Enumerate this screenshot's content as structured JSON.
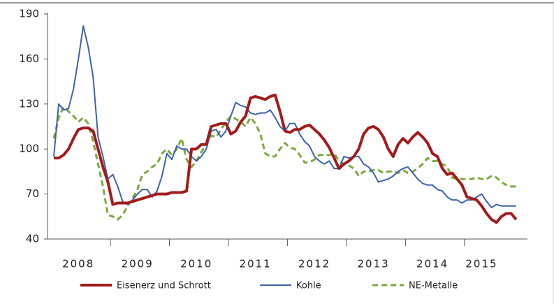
{
  "chart_data": {
    "type": "line",
    "categories": [
      null,
      null,
      null,
      null,
      null,
      "2008",
      null,
      null,
      null,
      null,
      null,
      null,
      null,
      null,
      null,
      null,
      null,
      "2009",
      null,
      null,
      null,
      null,
      null,
      null,
      null,
      null,
      null,
      null,
      null,
      "2010",
      null,
      null,
      null,
      null,
      null,
      null,
      null,
      null,
      null,
      null,
      null,
      "2011",
      null,
      null,
      null,
      null,
      null,
      null,
      null,
      null,
      null,
      null,
      null,
      "2012",
      null,
      null,
      null,
      null,
      null,
      null,
      null,
      null,
      null,
      null,
      null,
      "2013",
      null,
      null,
      null,
      null,
      null,
      null,
      null,
      null,
      null,
      null,
      null,
      "2014",
      null,
      null,
      null,
      null,
      null,
      null,
      null,
      null,
      null,
      "2015",
      null,
      null,
      null,
      null,
      null,
      null,
      null
    ],
    "series": [
      {
        "name": "Eisenerz und Schrott",
        "color": "#a31a1a",
        "style": "solid",
        "width": 4,
        "values": [
          94,
          94,
          96,
          100,
          107,
          113,
          114,
          114,
          112,
          100,
          88,
          78,
          63,
          64,
          64,
          64,
          65,
          66,
          67,
          68,
          69,
          70,
          70,
          70,
          71,
          71,
          71,
          72,
          100,
          100,
          103,
          103,
          115,
          116,
          117,
          117,
          110,
          112,
          118,
          122,
          134,
          135,
          134,
          133,
          135,
          136,
          125,
          112,
          111,
          113,
          113,
          115,
          116,
          113,
          110,
          106,
          101,
          94,
          87,
          90,
          92,
          95,
          100,
          110,
          114,
          115,
          113,
          108,
          100,
          95,
          103,
          107,
          104,
          108,
          111,
          108,
          104,
          97,
          95,
          87,
          83,
          84,
          80,
          76,
          68,
          67,
          66,
          62,
          57,
          53,
          51,
          55,
          57,
          57,
          53
        ]
      },
      {
        "name": "Kohle",
        "color": "#3a62b0",
        "style": "solid",
        "width": 2,
        "values": [
          95,
          130,
          126,
          127,
          140,
          160,
          182,
          168,
          148,
          108,
          95,
          80,
          83,
          75,
          65,
          63,
          66,
          70,
          73,
          73,
          68,
          72,
          82,
          97,
          93,
          102,
          100,
          100,
          95,
          92,
          95,
          100,
          112,
          113,
          108,
          112,
          122,
          131,
          129,
          128,
          124,
          123,
          124,
          124,
          126,
          121,
          115,
          112,
          117,
          117,
          110,
          105,
          102,
          95,
          92,
          90,
          92,
          87,
          87,
          95,
          94,
          95,
          95,
          90,
          88,
          84,
          78,
          79,
          80,
          82,
          85,
          87,
          88,
          84,
          80,
          77,
          76,
          76,
          73,
          72,
          68,
          66,
          66,
          64,
          66,
          66,
          68,
          70,
          65,
          61,
          63,
          62,
          62,
          62,
          62
        ]
      },
      {
        "name": "NE-Metalle",
        "color": "#7aaa3c",
        "style": "dashed",
        "width": 3,
        "values": [
          107,
          121,
          128,
          125,
          122,
          118,
          121,
          117,
          105,
          90,
          75,
          56,
          55,
          53,
          56,
          62,
          67,
          73,
          83,
          85,
          88,
          90,
          97,
          100,
          96,
          100,
          107,
          93,
          88,
          92,
          98,
          103,
          109,
          108,
          113,
          118,
          122,
          120,
          118,
          115,
          121,
          117,
          110,
          97,
          95,
          95,
          100,
          104,
          101,
          100,
          96,
          91,
          91,
          93,
          96,
          96,
          96,
          97,
          92,
          90,
          89,
          87,
          82,
          85,
          85,
          86,
          86,
          84,
          85,
          85,
          84,
          86,
          84,
          85,
          87,
          90,
          94,
          92,
          92,
          90,
          88,
          81,
          80,
          80,
          80,
          80,
          81,
          80,
          80,
          82,
          81,
          78,
          76,
          75,
          75
        ]
      }
    ],
    "ylim": [
      40,
      190
    ],
    "yticks": [
      40,
      70,
      100,
      130,
      160,
      190
    ],
    "grid": false
  }
}
